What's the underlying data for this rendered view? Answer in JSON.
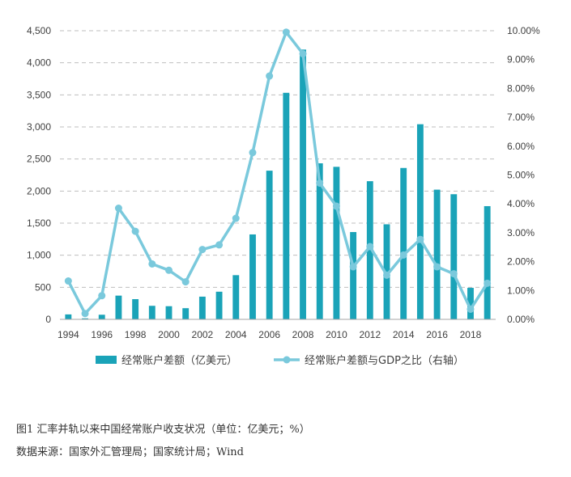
{
  "colors": {
    "bar": "#1aa3b8",
    "line": "#7ac9dc",
    "grid": "#bfbfbf",
    "text": "#404040"
  },
  "legend": {
    "bar_label": "经常账户差额（亿美元）",
    "line_label": "经常账户差额与GDP之比（右轴）"
  },
  "caption": {
    "title": "图1   汇率并轨以来中国经常账户收支状况（单位：亿美元；%）",
    "source": "数据来源：国家外汇管理局；国家统计局；Wind"
  },
  "chart_data": {
    "type": "bar",
    "title": "",
    "xlabel": "",
    "ylabel": "",
    "categories": [
      1994,
      1995,
      1996,
      1997,
      1998,
      1999,
      2000,
      2001,
      2002,
      2003,
      2004,
      2005,
      2006,
      2007,
      2008,
      2009,
      2010,
      2011,
      2012,
      2013,
      2014,
      2015,
      2016,
      2017,
      2018,
      2019
    ],
    "x_tick_labels": [
      "1994",
      "1996",
      "1998",
      "2000",
      "2002",
      "2004",
      "2006",
      "2008",
      "2010",
      "2012",
      "2014",
      "2016",
      "2018"
    ],
    "y_left": {
      "lim": [
        0,
        4500
      ],
      "ticks": [
        "0",
        "500",
        "1,000",
        "1,500",
        "2,000",
        "2,500",
        "3,000",
        "3,500",
        "4,000",
        "4,500"
      ]
    },
    "y_right": {
      "lim": [
        0,
        10
      ],
      "ticks": [
        "0.00%",
        "1.00%",
        "2.00%",
        "3.00%",
        "4.00%",
        "5.00%",
        "6.00%",
        "7.00%",
        "8.00%",
        "9.00%",
        "10.00%"
      ]
    },
    "grid": true,
    "legend_position": "bottom",
    "series": [
      {
        "name": "经常账户差额（亿美元）",
        "type": "bar",
        "axis": "left",
        "values": [
          77,
          16,
          72,
          370,
          315,
          211,
          205,
          174,
          354,
          431,
          689,
          1324,
          2318,
          3532,
          4206,
          2433,
          2378,
          1361,
          2154,
          1482,
          2360,
          3042,
          2022,
          1951,
          491,
          1765
        ]
      },
      {
        "name": "经常账户差额与GDP之比（右轴）",
        "type": "line",
        "axis": "right",
        "values": [
          1.33,
          0.2,
          0.82,
          3.85,
          3.05,
          1.92,
          1.7,
          1.3,
          2.42,
          2.58,
          3.5,
          5.78,
          8.43,
          9.95,
          9.2,
          4.72,
          3.92,
          1.82,
          2.52,
          1.53,
          2.23,
          2.77,
          1.82,
          1.58,
          0.35,
          1.25
        ]
      }
    ]
  }
}
